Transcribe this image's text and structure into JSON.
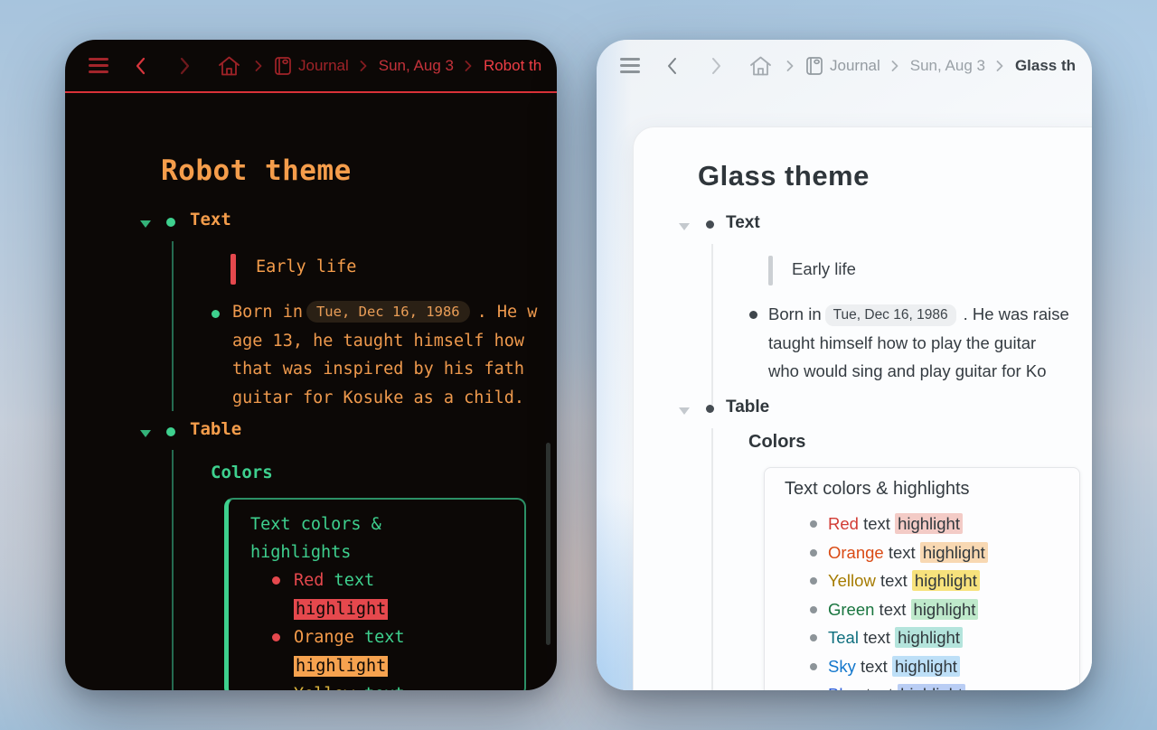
{
  "robot": {
    "breadcrumb": {
      "journal_label": "Journal",
      "date_label": "Sun, Aug 3",
      "current_label": "Robot th"
    },
    "title": "Robot theme",
    "text_section_label": "Text",
    "table_section_label": "Table",
    "quote_text": "Early life",
    "paragraph": {
      "line1_pre": "Born in",
      "date_chip": "Tue, Dec 16, 1986",
      "line1_post": ". He w",
      "line2": "age 13, he taught himself how",
      "line3": "that was inspired by his fath",
      "line4": "guitar for Kosuke as a child."
    },
    "colors_heading": "Colors",
    "colors_box": {
      "title_line1": "Text colors &",
      "title_line2": "highlights",
      "mid_text": "text",
      "highlight_text": "highlight",
      "items": [
        {
          "name": "Red",
          "name_color": "#e5484d",
          "highlight_bg": "#e5484d"
        },
        {
          "name": "Orange",
          "name_color": "#f59b4a",
          "highlight_bg": "#f6a24f"
        },
        {
          "name": "Yellow",
          "name_color": "#d9b33e",
          "highlight_bg": "#d9b33e"
        }
      ]
    },
    "accent_colors": {
      "orange": "#f59d4b",
      "green": "#3ed08e",
      "red": "#e5484d"
    }
  },
  "glass": {
    "breadcrumb": {
      "journal_label": "Journal",
      "date_label": "Sun, Aug 3",
      "current_label": "Glass th"
    },
    "title": "Glass theme",
    "text_section_label": "Text",
    "table_section_label": "Table",
    "quote_text": "Early life",
    "paragraph": {
      "line1_pre": "Born in",
      "date_chip": "Tue, Dec 16, 1986",
      "line1_post": ". He was raise",
      "line2": "taught himself how to play the guitar",
      "line3": "who would sing and play guitar for Ko"
    },
    "colors_heading": "Colors",
    "colors_box": {
      "title": "Text colors & highlights",
      "mid_text": "text",
      "highlight_text": "highlight",
      "items": [
        {
          "name": "Red",
          "name_color": "#d23b34",
          "highlight_bg": "#f3cbc6"
        },
        {
          "name": "Orange",
          "name_color": "#da4b15",
          "highlight_bg": "#f8d8b2"
        },
        {
          "name": "Yellow",
          "name_color": "#a57b00",
          "highlight_bg": "#f7e27c"
        },
        {
          "name": "Green",
          "name_color": "#19753f",
          "highlight_bg": "#bfe9cb"
        },
        {
          "name": "Teal",
          "name_color": "#0f6f7e",
          "highlight_bg": "#b4e4dc"
        },
        {
          "name": "Sky",
          "name_color": "#1377cc",
          "highlight_bg": "#bddff7"
        },
        {
          "name": "Blue",
          "name_color": "#2d5dd7",
          "highlight_bg": "#b9cdf4"
        }
      ]
    }
  }
}
